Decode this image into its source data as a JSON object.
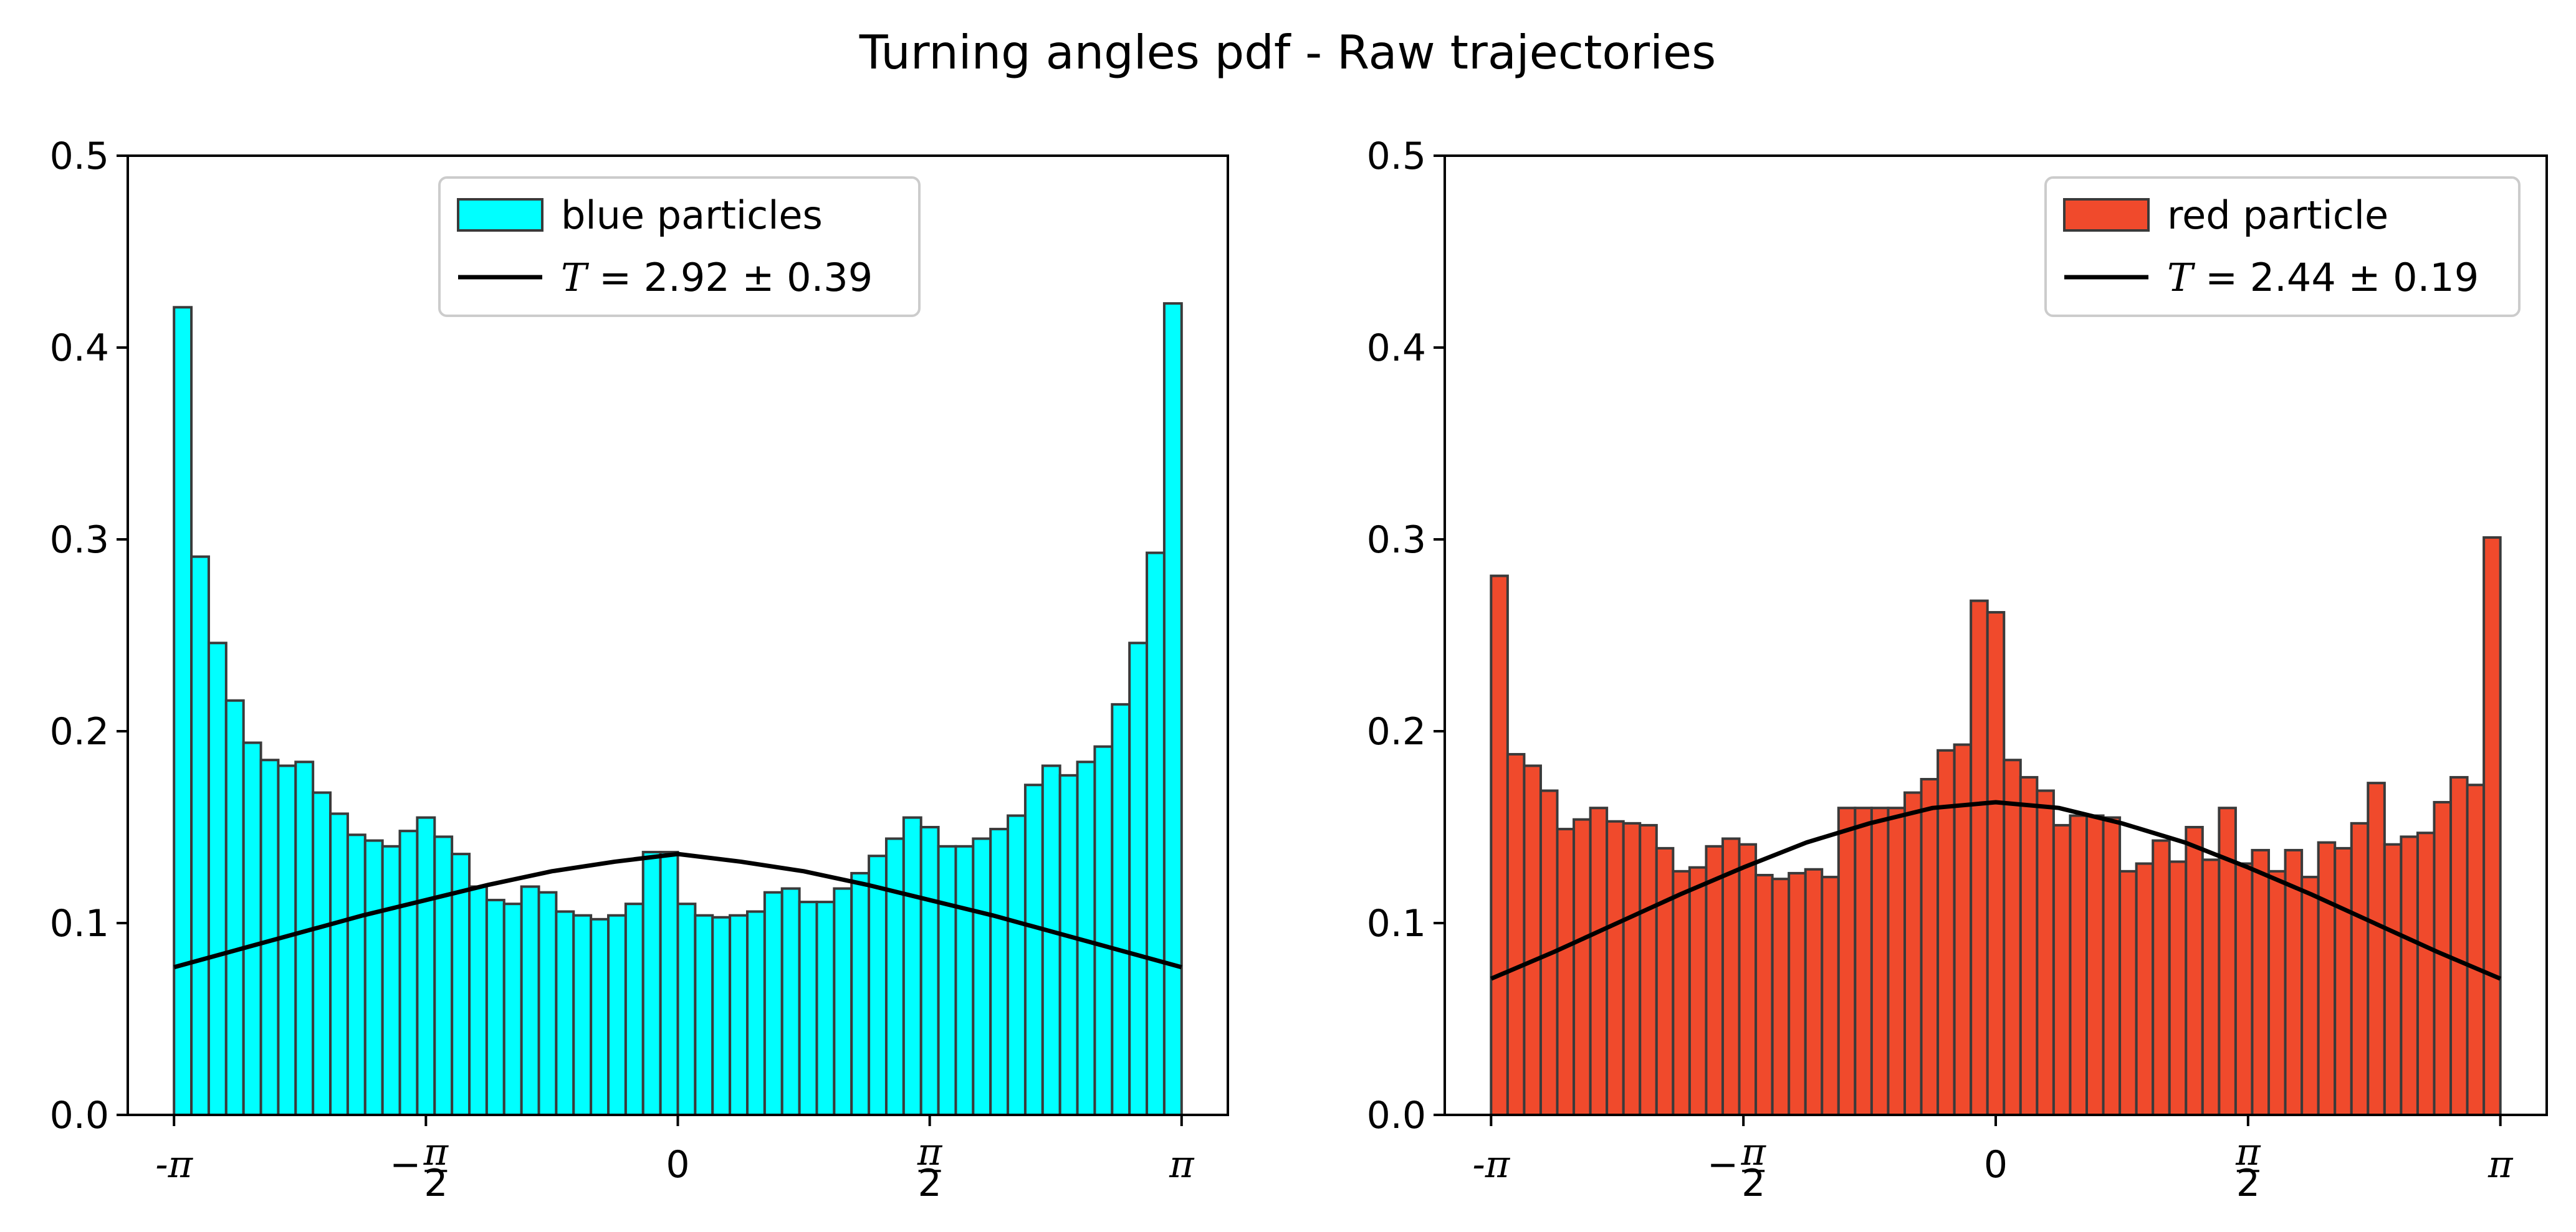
{
  "figure": {
    "title": "Turning angles pdf - Raw trajectories"
  },
  "chart_data": [
    {
      "type": "bar",
      "xlim": [
        -3.43,
        3.43
      ],
      "ylim": [
        0,
        0.5
      ],
      "x_ticks": [
        {
          "value": -3.14159,
          "label": "-π",
          "kind": "text"
        },
        {
          "value": -1.5708,
          "label": "−π/2",
          "kind": "frac",
          "sign": "−"
        },
        {
          "value": 0,
          "label": "0",
          "kind": "text"
        },
        {
          "value": 1.5708,
          "label": "π/2",
          "kind": "frac",
          "sign": ""
        },
        {
          "value": 3.14159,
          "label": "π",
          "kind": "text"
        }
      ],
      "y_ticks": [
        {
          "value": 0.0,
          "label": "0.0"
        },
        {
          "value": 0.1,
          "label": "0.1"
        },
        {
          "value": 0.2,
          "label": "0.2"
        },
        {
          "value": 0.3,
          "label": "0.3"
        },
        {
          "value": 0.4,
          "label": "0.4"
        },
        {
          "value": 0.5,
          "label": "0.5"
        }
      ],
      "legend_position": "top-center",
      "bar_range": [
        -3.14159,
        3.14159
      ],
      "series": [
        {
          "name": "blue particles",
          "kind": "histogram",
          "color": "#00ffff",
          "edgecolor": "#3a3a3a",
          "values": [
            0.421,
            0.291,
            0.246,
            0.216,
            0.194,
            0.185,
            0.182,
            0.184,
            0.168,
            0.157,
            0.146,
            0.143,
            0.14,
            0.148,
            0.155,
            0.145,
            0.136,
            0.119,
            0.112,
            0.11,
            0.119,
            0.116,
            0.106,
            0.104,
            0.102,
            0.104,
            0.11,
            0.137,
            0.137,
            0.11,
            0.104,
            0.103,
            0.104,
            0.106,
            0.116,
            0.118,
            0.111,
            0.111,
            0.118,
            0.126,
            0.135,
            0.144,
            0.155,
            0.15,
            0.14,
            0.14,
            0.144,
            0.149,
            0.156,
            0.172,
            0.182,
            0.177,
            0.184,
            0.192,
            0.214,
            0.246,
            0.293,
            0.423
          ]
        },
        {
          "name": "T = 2.92 ± 0.39",
          "kind": "line",
          "color": "#000000",
          "T_value": "2.92",
          "T_err": "0.39",
          "x": [
            -3.14159,
            -2.74889,
            -2.35619,
            -1.9635,
            -1.5708,
            -1.1781,
            -0.7854,
            -0.3927,
            0,
            0.3927,
            0.7854,
            1.1781,
            1.5708,
            1.9635,
            2.35619,
            2.74889,
            3.14159
          ],
          "y": [
            0.077,
            0.086,
            0.095,
            0.104,
            0.112,
            0.12,
            0.127,
            0.132,
            0.136,
            0.132,
            0.127,
            0.12,
            0.112,
            0.104,
            0.095,
            0.086,
            0.077
          ]
        }
      ]
    },
    {
      "type": "bar",
      "xlim": [
        -3.43,
        3.43
      ],
      "ylim": [
        0,
        0.5
      ],
      "x_ticks": [
        {
          "value": -3.14159,
          "label": "-π",
          "kind": "text"
        },
        {
          "value": -1.5708,
          "label": "−π/2",
          "kind": "frac",
          "sign": "−"
        },
        {
          "value": 0,
          "label": "0",
          "kind": "text"
        },
        {
          "value": 1.5708,
          "label": "π/2",
          "kind": "frac",
          "sign": ""
        },
        {
          "value": 3.14159,
          "label": "π",
          "kind": "text"
        }
      ],
      "y_ticks": [
        {
          "value": 0.0,
          "label": "0.0"
        },
        {
          "value": 0.1,
          "label": "0.1"
        },
        {
          "value": 0.2,
          "label": "0.2"
        },
        {
          "value": 0.3,
          "label": "0.3"
        },
        {
          "value": 0.4,
          "label": "0.4"
        },
        {
          "value": 0.5,
          "label": "0.5"
        }
      ],
      "legend_position": "top-right",
      "bar_range": [
        -3.14159,
        3.14159
      ],
      "series": [
        {
          "name": "red particle",
          "kind": "histogram",
          "color": "#f04a2c",
          "edgecolor": "#3a3a3a",
          "values": [
            0.281,
            0.188,
            0.182,
            0.169,
            0.149,
            0.154,
            0.16,
            0.153,
            0.152,
            0.151,
            0.139,
            0.127,
            0.129,
            0.14,
            0.144,
            0.141,
            0.125,
            0.123,
            0.126,
            0.128,
            0.124,
            0.16,
            0.16,
            0.16,
            0.16,
            0.168,
            0.175,
            0.19,
            0.193,
            0.268,
            0.262,
            0.185,
            0.176,
            0.169,
            0.151,
            0.156,
            0.156,
            0.155,
            0.127,
            0.131,
            0.143,
            0.132,
            0.15,
            0.133,
            0.16,
            0.131,
            0.138,
            0.127,
            0.138,
            0.124,
            0.142,
            0.139,
            0.152,
            0.173,
            0.141,
            0.145,
            0.147,
            0.163,
            0.176,
            0.172,
            0.301
          ]
        },
        {
          "name": "T = 2.44 ± 0.19",
          "kind": "line",
          "color": "#000000",
          "T_value": "2.44",
          "T_err": "0.19",
          "x": [
            -3.14159,
            -2.74889,
            -2.35619,
            -1.9635,
            -1.5708,
            -1.1781,
            -0.7854,
            -0.3927,
            0,
            0.3927,
            0.7854,
            1.1781,
            1.5708,
            1.9635,
            2.35619,
            2.74889,
            3.14159
          ],
          "y": [
            0.071,
            0.085,
            0.1,
            0.115,
            0.129,
            0.142,
            0.152,
            0.16,
            0.163,
            0.16,
            0.152,
            0.142,
            0.129,
            0.115,
            0.1,
            0.085,
            0.071
          ]
        }
      ]
    }
  ]
}
